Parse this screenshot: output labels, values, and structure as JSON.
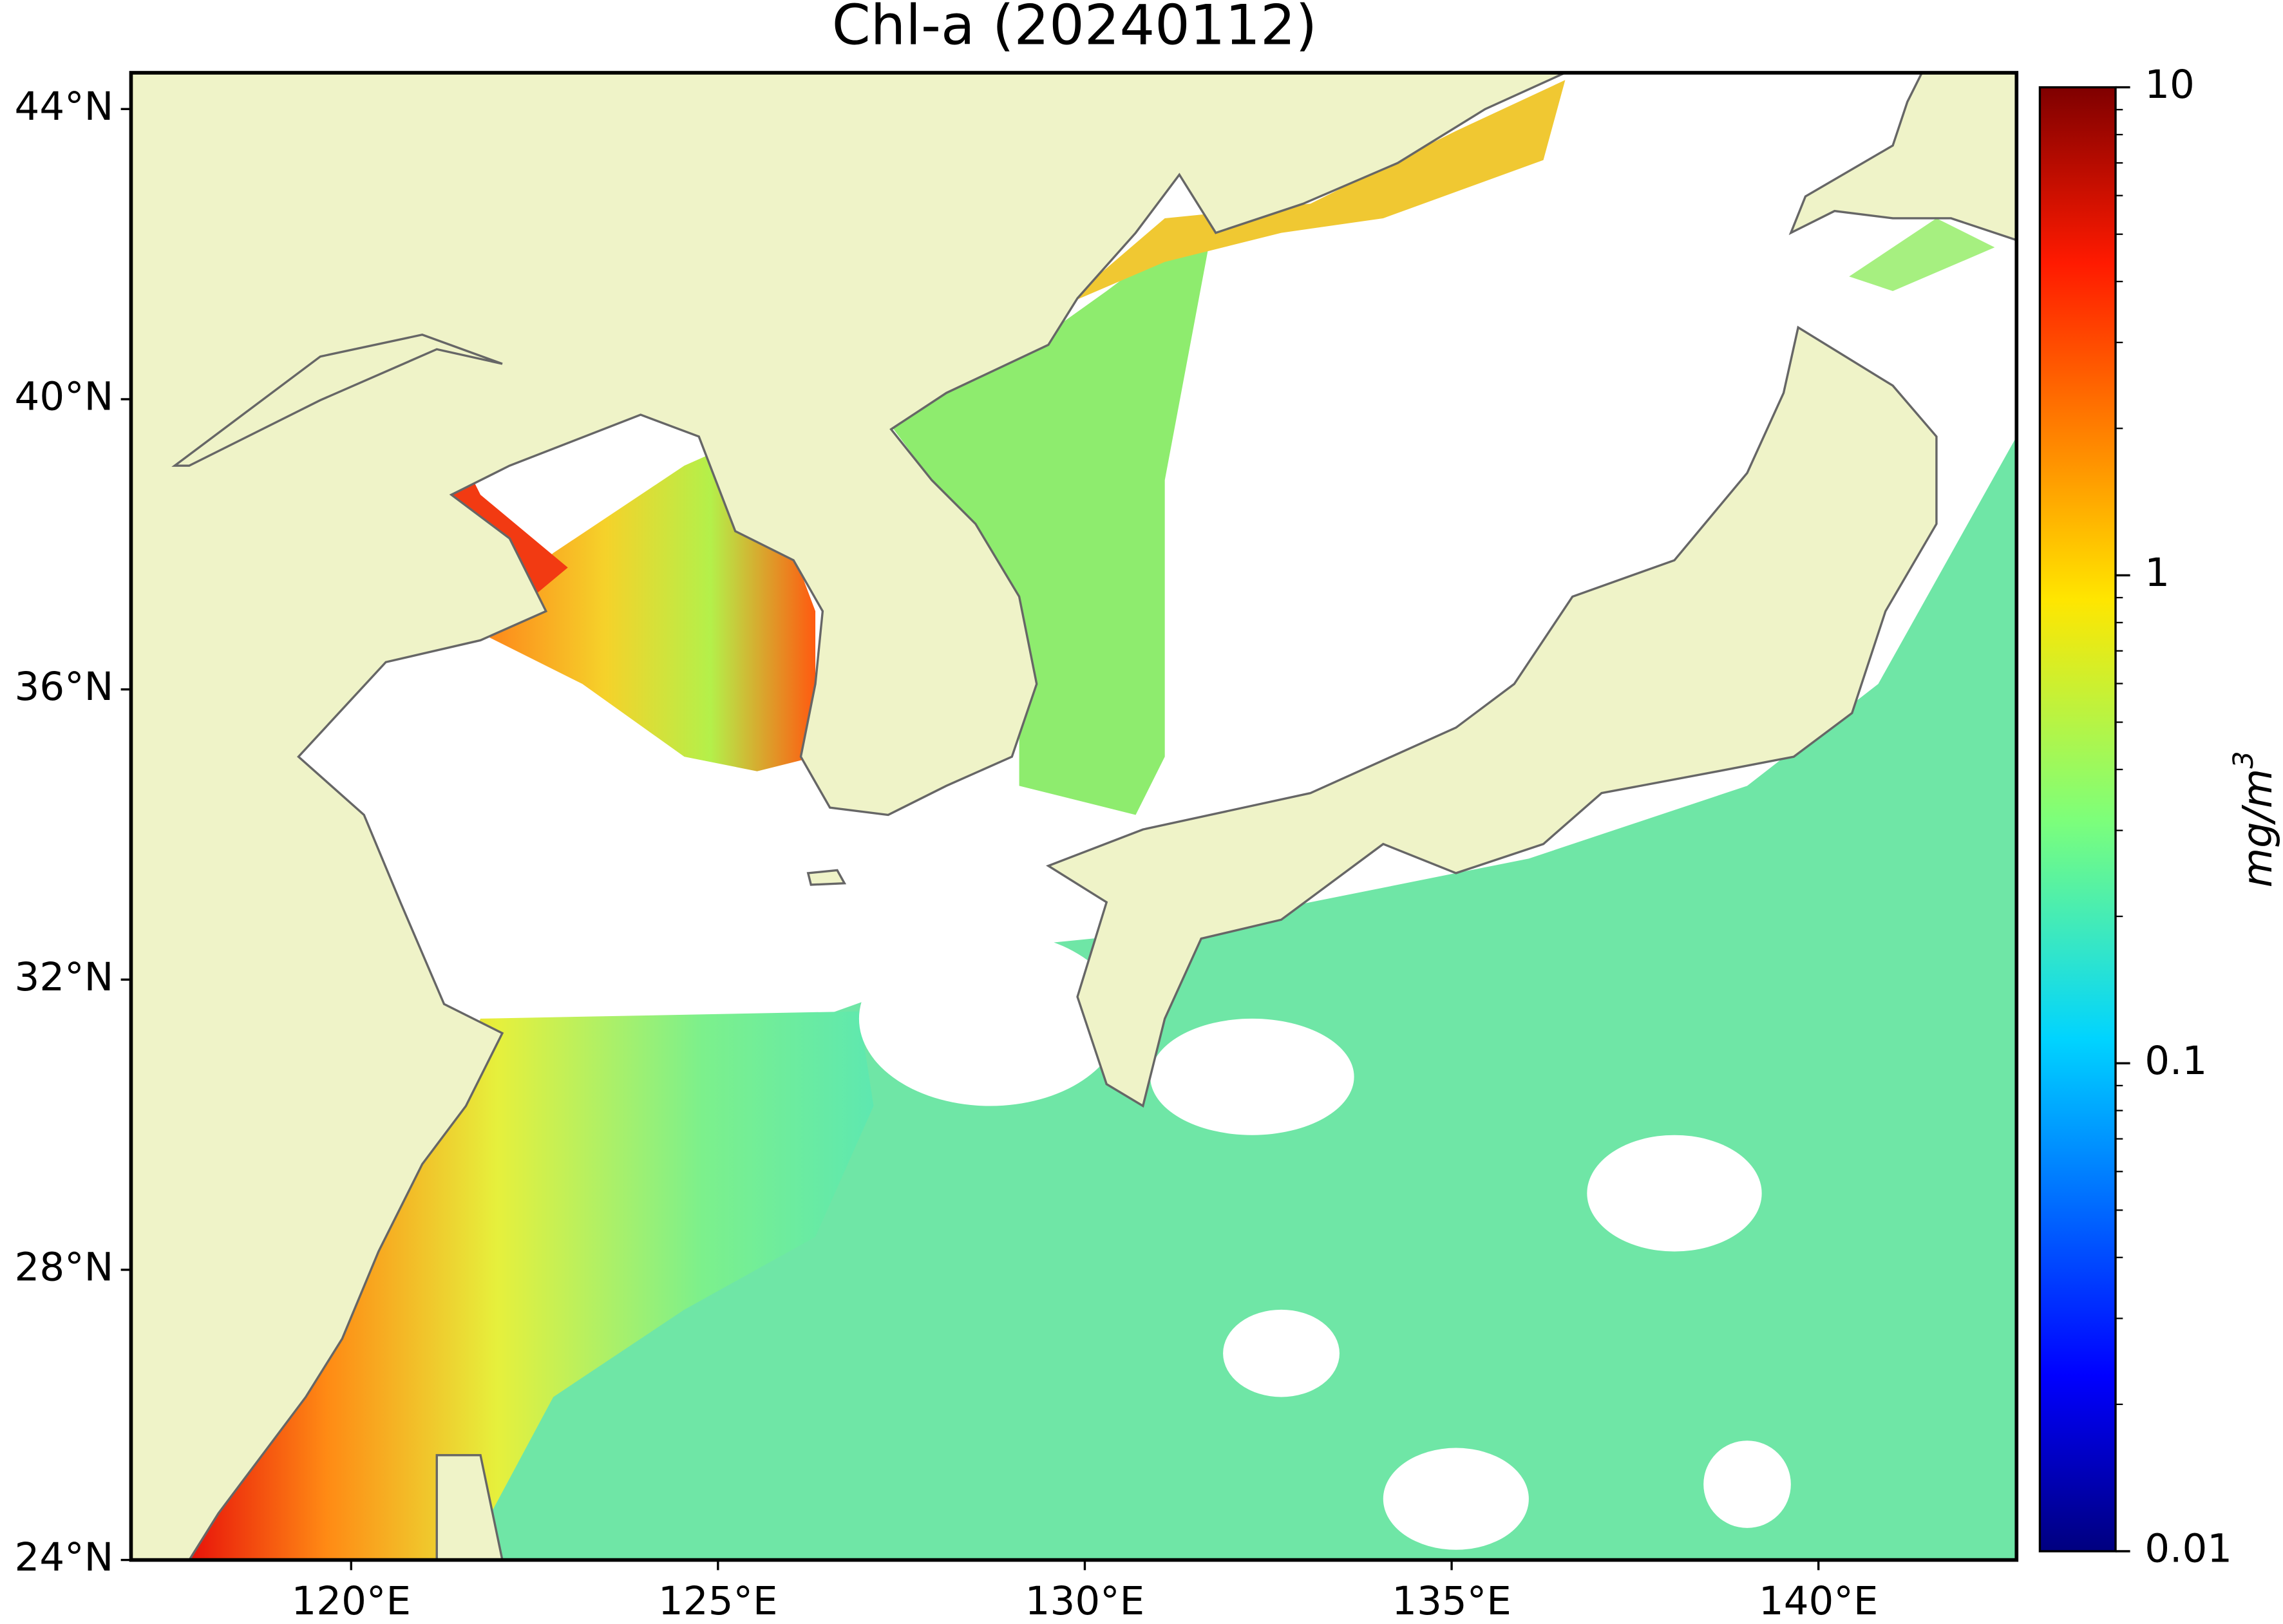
{
  "map": {
    "title": "Chl-a (20240112)",
    "lonlim": [
      117,
      142.7
    ],
    "latlim": [
      24,
      44.5
    ],
    "lat_ticks": [
      {
        "value": 24,
        "label": "24°N"
      },
      {
        "value": 28,
        "label": "28°N"
      },
      {
        "value": 32,
        "label": "32°N"
      },
      {
        "value": 36,
        "label": "36°N"
      },
      {
        "value": 40,
        "label": "40°N"
      },
      {
        "value": 44,
        "label": "44°N"
      }
    ],
    "lon_ticks": [
      {
        "value": 120,
        "label": "120°E"
      },
      {
        "value": 125,
        "label": "125°E"
      },
      {
        "value": 130,
        "label": "130°E"
      },
      {
        "value": 135,
        "label": "135°E"
      },
      {
        "value": 140,
        "label": "140°E"
      }
    ],
    "colorbar": {
      "lim": [
        0.01,
        10
      ],
      "log_scale": true,
      "ticks": [
        0.01,
        0.1,
        1,
        10
      ],
      "minor_ticks": [
        0.02,
        0.03,
        0.04,
        0.05,
        0.06,
        0.07,
        0.08,
        0.09,
        0.2,
        0.3,
        0.4,
        0.5,
        0.6,
        0.7,
        0.8,
        0.9,
        2,
        3,
        4,
        5,
        6,
        7,
        8,
        9
      ],
      "label": {
        "base": "mg/m",
        "sup": "3"
      }
    }
  }
}
